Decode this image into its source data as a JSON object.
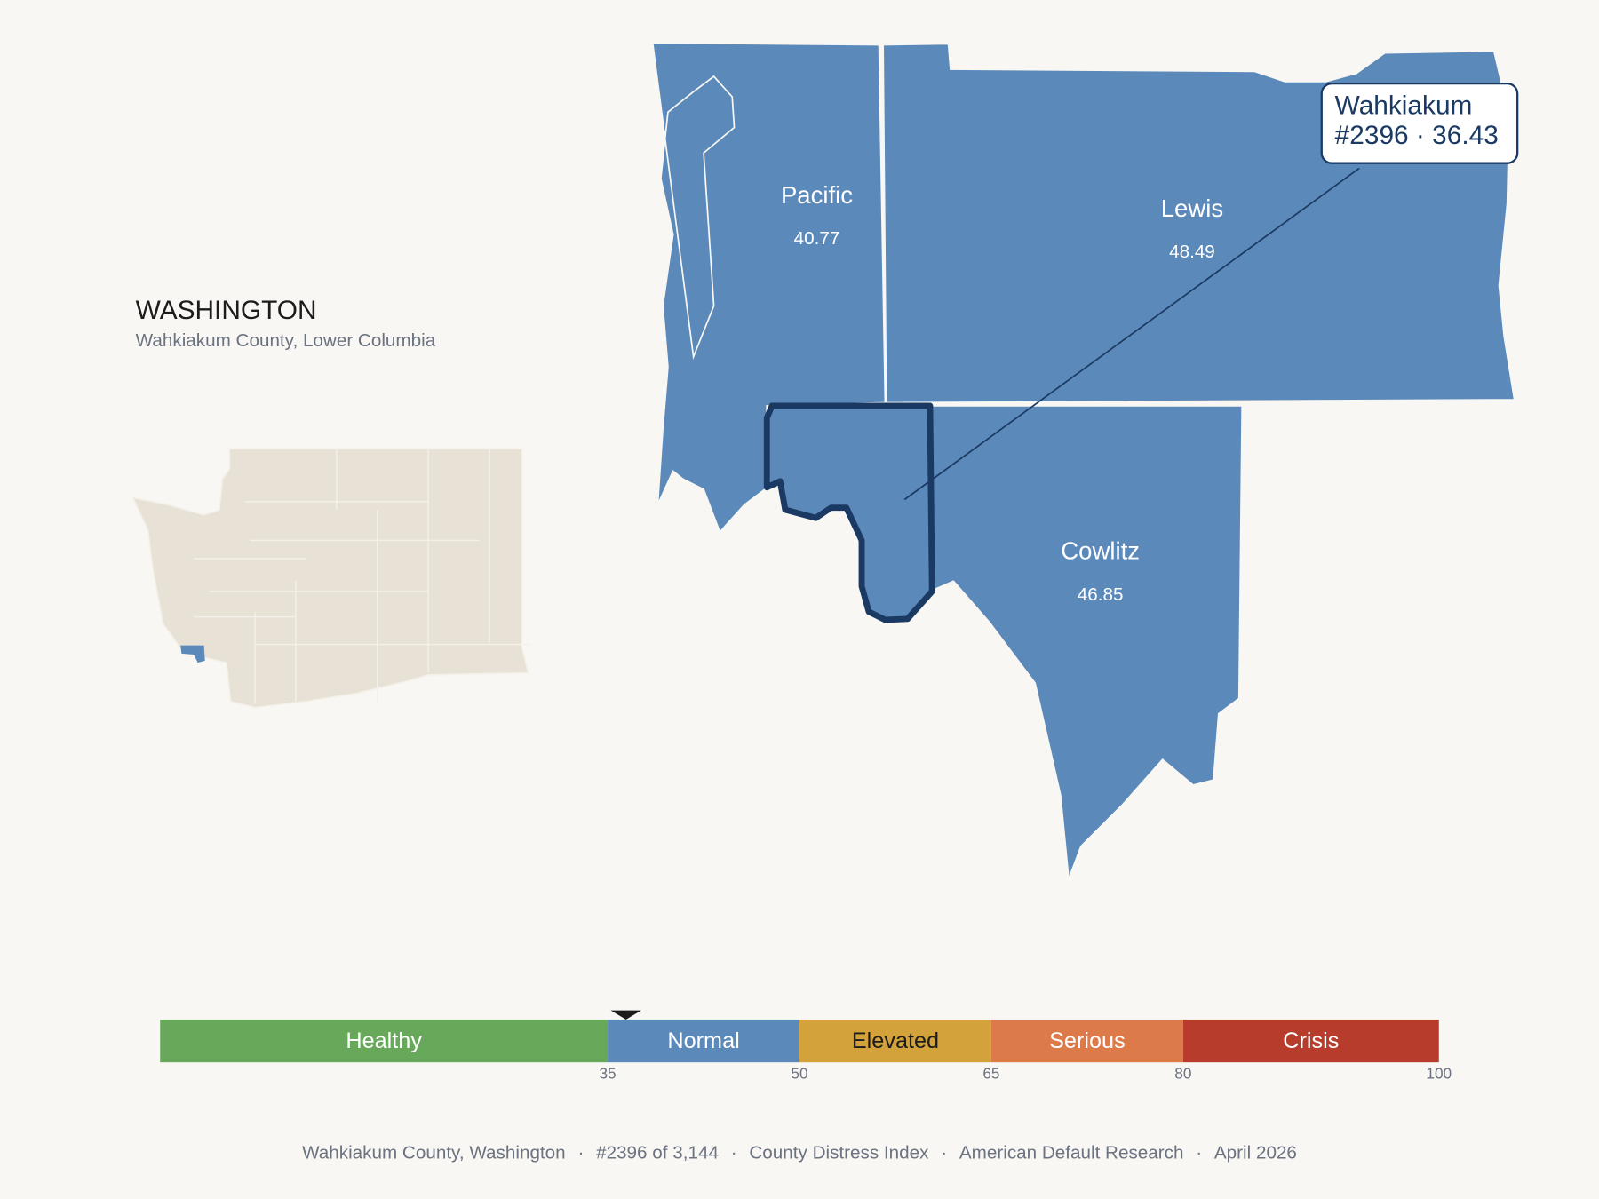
{
  "header": {
    "title": "WASHINGTON",
    "subtitle": "Wahkiakum County, Lower Columbia"
  },
  "counties": [
    {
      "name": "Pacific",
      "value": 40.77
    },
    {
      "name": "Lewis",
      "value": 48.49
    },
    {
      "name": "Cowlitz",
      "value": 46.85
    }
  ],
  "callout": {
    "name": "Wahkiakum",
    "rank": "#2396",
    "separator": "·",
    "score": 36.43
  },
  "scale": {
    "lim": [
      0,
      100
    ],
    "ticks": [
      35,
      50,
      65,
      80,
      100
    ],
    "segments": [
      {
        "label": "Healthy",
        "color": "#67a85a"
      },
      {
        "label": "Normal",
        "color": "#5b8aba"
      },
      {
        "label": "Elevated",
        "color": "#d4a23a"
      },
      {
        "label": "Serious",
        "color": "#dd7a4a"
      },
      {
        "label": "Crisis",
        "color": "#b83c2c"
      }
    ]
  },
  "footer": {
    "items": [
      "Wahkiakum County, Washington",
      "#2396 of 3,144",
      "County Distress Index",
      "American Default Research",
      "April 2026"
    ],
    "separator": "·"
  }
}
